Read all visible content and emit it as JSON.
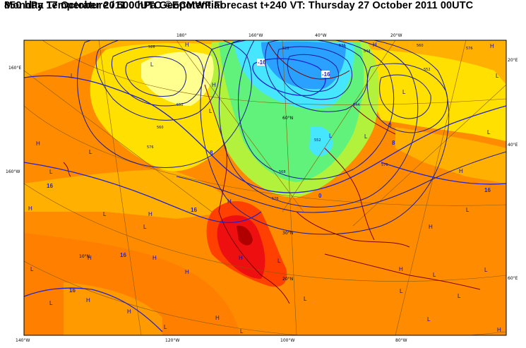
{
  "title": {
    "line1": "Monday 17 October 2011 00UTC ©ECMWF Forecast t+240 VT: Thursday 27 October 2011 00UTC",
    "line2": "850 hPa Temperature / 500 hPa Geopotential"
  },
  "map": {
    "lon_labels": [
      "180°",
      "160°W",
      "40°W",
      "20°W",
      "140°W",
      "120°W",
      "100°W",
      "80°W"
    ],
    "lat_labels": [
      "60°N",
      "30°N",
      "20°N",
      "10°N",
      "20°E",
      "40°E",
      "60°E",
      "160°E",
      "160°W"
    ],
    "temperature_labels": [
      "-16",
      "-8",
      "0",
      "8",
      "16"
    ],
    "geopotential_labels": [
      "528",
      "536",
      "544",
      "552",
      "560",
      "568",
      "576",
      "584"
    ],
    "pressure_centres": [
      "H",
      "L"
    ],
    "colors": {
      "very_cold": "#2aa0ff",
      "cold": "#46e6ff",
      "cool": "#60f27a",
      "mild": "#b2f23c",
      "warm_pale": "#ffff90",
      "warm": "#ffe000",
      "warmer": "#ffb000",
      "hot": "#ff8c00",
      "very_hot": "#ff4000",
      "extreme": "#ee1010",
      "contour": "#1a1a90",
      "coast": "#7a0000"
    }
  }
}
